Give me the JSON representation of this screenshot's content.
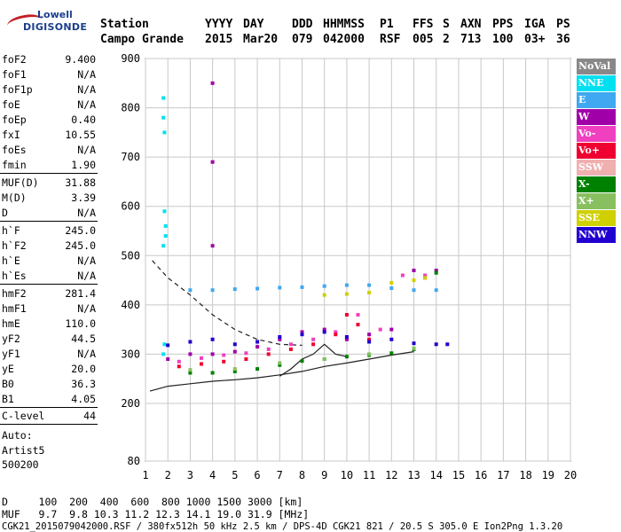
{
  "logo": {
    "line1": "Lowell",
    "line2": "DIGISONDE"
  },
  "header": {
    "labels": [
      "Station",
      "YYYY",
      "DAY",
      "DDD",
      "HHMMSS",
      "P1",
      "FFS",
      "S",
      "AXN",
      "PPS",
      "IGA",
      "PS"
    ],
    "values": [
      "Campo Grande",
      "2015",
      "Mar20",
      "079",
      "042000",
      "RSF",
      "005",
      "2",
      "713",
      "100",
      "03+",
      "36"
    ]
  },
  "params_group1": [
    {
      "k": "foF2",
      "v": "9.400"
    },
    {
      "k": "foF1",
      "v": "N/A"
    },
    {
      "k": "foF1p",
      "v": "N/A"
    },
    {
      "k": "foE",
      "v": "N/A"
    },
    {
      "k": "foEp",
      "v": "0.40"
    },
    {
      "k": "fxI",
      "v": "10.55"
    },
    {
      "k": "foEs",
      "v": "N/A"
    },
    {
      "k": "fmin",
      "v": "1.90"
    }
  ],
  "params_group2": [
    {
      "k": "MUF(D)",
      "v": "31.88"
    },
    {
      "k": "M(D)",
      "v": "3.39"
    },
    {
      "k": "D",
      "v": "N/A"
    }
  ],
  "params_group3": [
    {
      "k": "h`F",
      "v": "245.0"
    },
    {
      "k": "h`F2",
      "v": "245.0"
    },
    {
      "k": "h`E",
      "v": "N/A"
    },
    {
      "k": "h`Es",
      "v": "N/A"
    }
  ],
  "params_group4": [
    {
      "k": "hmF2",
      "v": "281.4"
    },
    {
      "k": "hmF1",
      "v": "N/A"
    },
    {
      "k": "hmE",
      "v": "110.0"
    },
    {
      "k": "yF2",
      "v": "44.5"
    },
    {
      "k": "yF1",
      "v": "N/A"
    },
    {
      "k": "yE",
      "v": "20.0"
    },
    {
      "k": "B0",
      "v": "36.3"
    },
    {
      "k": "B1",
      "v": "4.05"
    }
  ],
  "params_group5": [
    {
      "k": "C-level",
      "v": "44"
    }
  ],
  "auto": {
    "line1": "Auto:",
    "line2": "Artist5",
    "line3": "500200"
  },
  "legend": [
    {
      "label": "NoVal",
      "color": "#888888"
    },
    {
      "label": "NNE",
      "color": "#00e0f0"
    },
    {
      "label": "E",
      "color": "#40a8f0"
    },
    {
      "label": "W",
      "color": "#a000a8"
    },
    {
      "label": "Vo-",
      "color": "#f040c0"
    },
    {
      "label": "Vo+",
      "color": "#f00030"
    },
    {
      "label": "SSW",
      "color": "#f0b0b0"
    },
    {
      "label": "X-",
      "color": "#008000"
    },
    {
      "label": "X+",
      "color": "#88c060"
    },
    {
      "label": "SSE",
      "color": "#d0d000"
    },
    {
      "label": "NNW",
      "color": "#2000d0"
    }
  ],
  "bottom": {
    "row1": "D     100  200  400  600  800 1000 1500 3000 [km]",
    "row2": "MUF   9.7  9.8 10.3 11.2 12.3 14.1 19.0 31.9 [MHz]",
    "row3": "CGK21_2015079042000.RSF / 380fx512h 50 kHz 2.5 km / DPS-4D CGK21 821 / 20.5 S 305.0 E Ion2Png 1.3.20"
  },
  "chart_data": {
    "type": "scatter",
    "xlabel": "",
    "ylabel": "",
    "xlim": [
      1,
      20
    ],
    "ylim": [
      80,
      900
    ],
    "x_ticks": [
      1,
      2,
      3,
      4,
      5,
      6,
      7,
      8,
      9,
      10,
      11,
      12,
      13,
      14,
      15,
      16,
      17,
      18,
      19,
      20
    ],
    "y_ticks": [
      80,
      200,
      300,
      400,
      500,
      600,
      700,
      800,
      900
    ],
    "grid": true,
    "series": [
      {
        "name": "NNE",
        "color": "#00e0f0",
        "points": [
          [
            1.8,
            780
          ],
          [
            1.8,
            820
          ],
          [
            1.85,
            750
          ],
          [
            1.9,
            540
          ],
          [
            1.9,
            560
          ],
          [
            1.85,
            590
          ],
          [
            1.8,
            520
          ],
          [
            1.8,
            300
          ],
          [
            1.85,
            320
          ]
        ]
      },
      {
        "name": "E",
        "color": "#40a8f0",
        "points": [
          [
            3.0,
            430
          ],
          [
            4.0,
            430
          ],
          [
            5.0,
            432
          ],
          [
            6.0,
            433
          ],
          [
            7.0,
            435
          ],
          [
            8.0,
            436
          ],
          [
            9.0,
            438
          ],
          [
            10.0,
            440
          ],
          [
            11.0,
            440
          ],
          [
            12.0,
            434
          ],
          [
            13.0,
            430
          ],
          [
            14.0,
            430
          ]
        ]
      },
      {
        "name": "W",
        "color": "#a000a8",
        "points": [
          [
            2.0,
            290
          ],
          [
            3.0,
            300
          ],
          [
            4.0,
            300
          ],
          [
            4.0,
            520
          ],
          [
            4.0,
            690
          ],
          [
            4.0,
            850
          ],
          [
            5.0,
            305
          ],
          [
            6.0,
            315
          ],
          [
            7.0,
            330
          ],
          [
            8.0,
            345
          ],
          [
            9.0,
            350
          ],
          [
            10.0,
            330
          ],
          [
            11.0,
            340
          ],
          [
            12.0,
            350
          ],
          [
            13.0,
            470
          ],
          [
            14.0,
            470
          ]
        ]
      },
      {
        "name": "Vo-",
        "color": "#f040c0",
        "points": [
          [
            2.5,
            285
          ],
          [
            3.5,
            292
          ],
          [
            4.5,
            298
          ],
          [
            5.5,
            302
          ],
          [
            6.5,
            310
          ],
          [
            7.5,
            320
          ],
          [
            8.5,
            330
          ],
          [
            9.5,
            345
          ],
          [
            10.5,
            380
          ],
          [
            11.5,
            350
          ],
          [
            12.5,
            460
          ],
          [
            13.5,
            460
          ]
        ]
      },
      {
        "name": "Vo+",
        "color": "#f00030",
        "points": [
          [
            2.5,
            275
          ],
          [
            3.5,
            280
          ],
          [
            4.5,
            285
          ],
          [
            5.5,
            290
          ],
          [
            6.5,
            300
          ],
          [
            7.5,
            310
          ],
          [
            8.5,
            320
          ],
          [
            9.5,
            340
          ],
          [
            10.0,
            380
          ],
          [
            10.5,
            360
          ],
          [
            11.0,
            330
          ],
          [
            13.5,
            455
          ]
        ]
      },
      {
        "name": "X-",
        "color": "#008000",
        "points": [
          [
            3.0,
            262
          ],
          [
            4.0,
            262
          ],
          [
            5.0,
            265
          ],
          [
            6.0,
            270
          ],
          [
            7.0,
            278
          ],
          [
            8.0,
            286
          ],
          [
            9.0,
            290
          ],
          [
            10.0,
            295
          ],
          [
            11.0,
            298
          ],
          [
            12.0,
            302
          ],
          [
            13.0,
            310
          ],
          [
            14.0,
            465
          ]
        ]
      },
      {
        "name": "X+",
        "color": "#88c060",
        "points": [
          [
            3.0,
            268
          ],
          [
            5.0,
            270
          ],
          [
            7.0,
            282
          ],
          [
            9.0,
            290
          ],
          [
            11.0,
            300
          ],
          [
            13.0,
            312
          ]
        ]
      },
      {
        "name": "SSE",
        "color": "#d0d000",
        "points": [
          [
            9.0,
            420
          ],
          [
            10.0,
            422
          ],
          [
            11.0,
            425
          ],
          [
            12.0,
            445
          ],
          [
            13.0,
            450
          ],
          [
            13.5,
            455
          ]
        ]
      },
      {
        "name": "NNW",
        "color": "#2000d0",
        "points": [
          [
            2.0,
            318
          ],
          [
            3.0,
            325
          ],
          [
            4.0,
            330
          ],
          [
            5.0,
            320
          ],
          [
            6.0,
            325
          ],
          [
            7.0,
            335
          ],
          [
            8.0,
            340
          ],
          [
            9.0,
            345
          ],
          [
            10.0,
            335
          ],
          [
            11.0,
            325
          ],
          [
            12.0,
            330
          ],
          [
            13.0,
            322
          ],
          [
            14.0,
            320
          ],
          [
            14.5,
            320
          ]
        ]
      }
    ],
    "lines": [
      {
        "kind": "dashed",
        "points": [
          [
            1.3,
            490
          ],
          [
            2.0,
            455
          ],
          [
            3.0,
            420
          ],
          [
            4.0,
            380
          ],
          [
            5.0,
            350
          ],
          [
            6.0,
            330
          ],
          [
            7.0,
            320
          ],
          [
            8.0,
            318
          ]
        ]
      },
      {
        "kind": "solid",
        "points": [
          [
            1.2,
            225
          ],
          [
            2.0,
            235
          ],
          [
            3.0,
            240
          ],
          [
            4.0,
            245
          ],
          [
            5.0,
            248
          ],
          [
            6.0,
            252
          ],
          [
            7.0,
            258
          ],
          [
            8.0,
            265
          ],
          [
            9.0,
            275
          ],
          [
            10.0,
            282
          ],
          [
            11.0,
            290
          ],
          [
            12.0,
            298
          ],
          [
            13.0,
            305
          ]
        ]
      },
      {
        "kind": "solid",
        "points": [
          [
            7.0,
            255
          ],
          [
            7.5,
            270
          ],
          [
            8.0,
            290
          ],
          [
            8.5,
            300
          ],
          [
            9.0,
            320
          ],
          [
            9.5,
            300
          ],
          [
            10.0,
            295
          ]
        ]
      }
    ]
  }
}
